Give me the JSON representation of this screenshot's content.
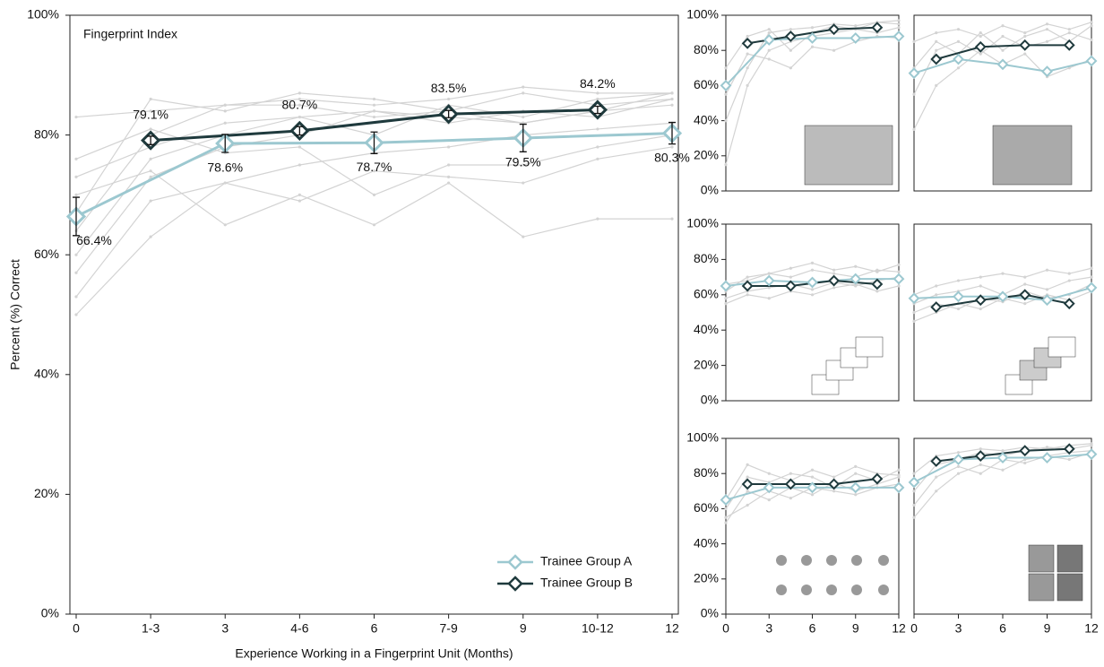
{
  "chart_data": [
    {
      "type": "line",
      "title": "Fingerprint Index",
      "xlabel": "Experience Working in a Fingerprint Unit (Months)",
      "ylabel": "Percent (%) Correct",
      "xlim": [
        0,
        12
      ],
      "ylim": [
        0,
        100
      ],
      "xticks": [
        0,
        {
          "value": 1.5,
          "label": "1-3"
        },
        3,
        {
          "value": 4.5,
          "label": "4-6"
        },
        6,
        {
          "value": 7.5,
          "label": "7-9"
        },
        9,
        {
          "value": 10.5,
          "label": "10-12"
        },
        12
      ],
      "yticks": [
        {
          "value": 0,
          "label": "0%"
        },
        {
          "value": 20,
          "label": "20%"
        },
        {
          "value": 40,
          "label": "40%"
        },
        {
          "value": 60,
          "label": "60%"
        },
        {
          "value": 80,
          "label": "80%"
        },
        {
          "value": 100,
          "label": "100%"
        }
      ],
      "legend": "lower right",
      "individual_x": [
        0,
        1.5,
        3,
        4.5,
        6,
        7.5,
        9,
        10.5,
        12
      ],
      "individual_color": "#d3d3d3",
      "individuals": [
        [
          50,
          63,
          72,
          75,
          77,
          78,
          80,
          81,
          82
        ],
        [
          53,
          69,
          72,
          69,
          74,
          73,
          72,
          76,
          78
        ],
        [
          57,
          73,
          78,
          80,
          84,
          82,
          84,
          83,
          86
        ],
        [
          60,
          76,
          80,
          83,
          80,
          85,
          83,
          86,
          87
        ],
        [
          64,
          80,
          85,
          86,
          85,
          86,
          88,
          87,
          87
        ],
        [
          67,
          86,
          84,
          87,
          86,
          84,
          87,
          85,
          86
        ],
        [
          70,
          74,
          65,
          70,
          65,
          72,
          63,
          66,
          66
        ],
        [
          73,
          78,
          82,
          83,
          84,
          83,
          82,
          84,
          85
        ],
        [
          76,
          81,
          77,
          78,
          70,
          75,
          75,
          78,
          80
        ],
        [
          83,
          84,
          85,
          85,
          83,
          84,
          82,
          84,
          87
        ]
      ],
      "series": [
        {
          "name": "Trainee Group A",
          "color": "#9cc8d0",
          "x": [
            0,
            3,
            6,
            9,
            12
          ],
          "values": [
            66.4,
            78.6,
            78.7,
            79.5,
            80.3
          ],
          "errors": [
            3.2,
            1.5,
            1.8,
            2.3,
            1.8
          ],
          "value_labels": [
            "66.4%",
            "78.6%",
            "78.7%",
            "79.5%",
            "80.3%"
          ]
        },
        {
          "name": "Trainee Group B",
          "color": "#1f3a3d",
          "x": [
            1.5,
            4.5,
            7.5,
            10.5
          ],
          "values": [
            79.1,
            80.7,
            83.5,
            84.2
          ],
          "errors": [
            0.7,
            0.7,
            0.6,
            0.6
          ],
          "value_labels": [
            "79.1%",
            "80.7%",
            "83.5%",
            "84.2%"
          ]
        }
      ]
    },
    {
      "type": "line",
      "xlim": [
        0,
        12
      ],
      "ylim": [
        0,
        100
      ],
      "yticks": [
        {
          "value": 0,
          "label": "0%"
        },
        {
          "value": 20,
          "label": "20%"
        },
        {
          "value": 40,
          "label": "40%"
        },
        {
          "value": 60,
          "label": "60%"
        },
        {
          "value": 80,
          "label": "80%"
        },
        {
          "value": 100,
          "label": "100%"
        }
      ],
      "individual_x": [
        0,
        1.5,
        3,
        4.5,
        6,
        7.5,
        9,
        10.5,
        12
      ],
      "individual_color": "#d3d3d3",
      "individuals": [
        [
          15,
          60,
          80,
          85,
          88,
          90,
          92,
          90,
          93
        ],
        [
          40,
          70,
          90,
          92,
          93,
          95,
          94,
          96,
          95
        ],
        [
          55,
          78,
          75,
          70,
          82,
          80,
          85,
          88,
          87
        ],
        [
          70,
          88,
          92,
          80,
          90,
          94,
          92,
          96,
          97
        ]
      ],
      "series": [
        {
          "name": "Trainee Group A",
          "color": "#9cc8d0",
          "x": [
            0,
            3,
            6,
            9,
            12
          ],
          "values": [
            60,
            86,
            87,
            87,
            88
          ]
        },
        {
          "name": "Trainee Group B",
          "color": "#1f3a3d",
          "x": [
            1.5,
            4.5,
            7.5,
            10.5
          ],
          "values": [
            84,
            88,
            92,
            93
          ]
        }
      ]
    },
    {
      "type": "line",
      "xlim": [
        0,
        12
      ],
      "ylim": [
        0,
        100
      ],
      "individual_x": [
        0,
        1.5,
        3,
        4.5,
        6,
        7.5,
        9,
        10.5,
        12
      ],
      "individual_color": "#d3d3d3",
      "individuals": [
        [
          35,
          60,
          70,
          80,
          72,
          78,
          65,
          70,
          75
        ],
        [
          55,
          80,
          85,
          78,
          88,
          82,
          85,
          90,
          86
        ],
        [
          70,
          85,
          78,
          90,
          80,
          88,
          92,
          85,
          94
        ],
        [
          85,
          90,
          92,
          88,
          94,
          90,
          95,
          92,
          96
        ]
      ],
      "series": [
        {
          "name": "Trainee Group A",
          "color": "#9cc8d0",
          "x": [
            0,
            3,
            6,
            9,
            12
          ],
          "values": [
            67,
            75,
            72,
            68,
            74
          ]
        },
        {
          "name": "Trainee Group B",
          "color": "#1f3a3d",
          "x": [
            1.5,
            4.5,
            7.5,
            10.5
          ],
          "values": [
            75,
            82,
            83,
            83
          ]
        }
      ]
    },
    {
      "type": "line",
      "xlim": [
        0,
        12
      ],
      "ylim": [
        0,
        100
      ],
      "yticks": [
        {
          "value": 0,
          "label": "0%"
        },
        {
          "value": 20,
          "label": "20%"
        },
        {
          "value": 40,
          "label": "40%"
        },
        {
          "value": 60,
          "label": "60%"
        },
        {
          "value": 80,
          "label": "80%"
        },
        {
          "value": 100,
          "label": "100%"
        }
      ],
      "individual_x": [
        0,
        1.5,
        3,
        4.5,
        6,
        7.5,
        9,
        10.5,
        12
      ],
      "individual_color": "#d3d3d3",
      "individuals": [
        [
          58,
          62,
          64,
          66,
          63,
          67,
          65,
          68,
          70
        ],
        [
          62,
          70,
          72,
          75,
          78,
          74,
          76,
          73,
          77
        ],
        [
          55,
          60,
          58,
          62,
          60,
          64,
          66,
          62,
          65
        ],
        [
          66,
          68,
          72,
          70,
          74,
          72,
          70,
          74,
          73
        ]
      ],
      "series": [
        {
          "name": "Trainee Group A",
          "color": "#9cc8d0",
          "x": [
            0,
            3,
            6,
            9,
            12
          ],
          "values": [
            65,
            68,
            67,
            69,
            69
          ]
        },
        {
          "name": "Trainee Group B",
          "color": "#1f3a3d",
          "x": [
            1.5,
            4.5,
            7.5,
            10.5
          ],
          "values": [
            65,
            65,
            68,
            66
          ]
        }
      ]
    },
    {
      "type": "line",
      "xlim": [
        0,
        12
      ],
      "ylim": [
        0,
        100
      ],
      "individual_x": [
        0,
        1.5,
        3,
        4.5,
        6,
        7.5,
        9,
        10.5,
        12
      ],
      "individual_color": "#d3d3d3",
      "individuals": [
        [
          45,
          50,
          55,
          52,
          58,
          55,
          60,
          57,
          62
        ],
        [
          55,
          60,
          62,
          65,
          60,
          66,
          63,
          68,
          70
        ],
        [
          60,
          65,
          68,
          70,
          72,
          70,
          74,
          72,
          75
        ],
        [
          50,
          55,
          52,
          58,
          56,
          62,
          58,
          60,
          66
        ]
      ],
      "series": [
        {
          "name": "Trainee Group A",
          "color": "#9cc8d0",
          "x": [
            0,
            3,
            6,
            9,
            12
          ],
          "values": [
            58,
            59,
            59,
            57,
            64
          ]
        },
        {
          "name": "Trainee Group B",
          "color": "#1f3a3d",
          "x": [
            1.5,
            4.5,
            7.5,
            10.5
          ],
          "values": [
            53,
            57,
            60,
            55
          ]
        }
      ]
    },
    {
      "type": "line",
      "xlim": [
        0,
        12
      ],
      "ylim": [
        0,
        100
      ],
      "xticks": [
        0,
        3,
        6,
        9,
        12
      ],
      "yticks": [
        {
          "value": 0,
          "label": "0%"
        },
        {
          "value": 20,
          "label": "20%"
        },
        {
          "value": 40,
          "label": "40%"
        },
        {
          "value": 60,
          "label": "60%"
        },
        {
          "value": 80,
          "label": "80%"
        },
        {
          "value": 100,
          "label": "100%"
        }
      ],
      "individual_x": [
        0,
        1.5,
        3,
        4.5,
        6,
        7.5,
        9,
        10.5,
        12
      ],
      "individual_color": "#d3d3d3",
      "individuals": [
        [
          52,
          70,
          65,
          72,
          68,
          75,
          70,
          74,
          78
        ],
        [
          60,
          78,
          75,
          80,
          78,
          72,
          80,
          76,
          82
        ],
        [
          55,
          62,
          70,
          66,
          72,
          70,
          68,
          72,
          74
        ],
        [
          65,
          85,
          80,
          76,
          82,
          78,
          84,
          80,
          79
        ]
      ],
      "series": [
        {
          "name": "Trainee Group A",
          "color": "#9cc8d0",
          "x": [
            0,
            3,
            6,
            9,
            12
          ],
          "values": [
            65,
            72,
            72,
            72,
            72
          ]
        },
        {
          "name": "Trainee Group B",
          "color": "#1f3a3d",
          "x": [
            1.5,
            4.5,
            7.5,
            10.5
          ],
          "values": [
            74,
            74,
            74,
            77
          ]
        }
      ]
    },
    {
      "type": "line",
      "xlim": [
        0,
        12
      ],
      "ylim": [
        0,
        100
      ],
      "xticks": [
        0,
        3,
        6,
        9,
        12
      ],
      "individual_x": [
        0,
        1.5,
        3,
        4.5,
        6,
        7.5,
        9,
        10.5,
        12
      ],
      "individual_color": "#d3d3d3",
      "individuals": [
        [
          55,
          70,
          80,
          85,
          82,
          88,
          90,
          92,
          93
        ],
        [
          70,
          85,
          88,
          92,
          90,
          93,
          95,
          94,
          96
        ],
        [
          62,
          78,
          84,
          80,
          88,
          86,
          90,
          88,
          92
        ],
        [
          80,
          90,
          92,
          94,
          93,
          95,
          94,
          96,
          97
        ]
      ],
      "series": [
        {
          "name": "Trainee Group A",
          "color": "#9cc8d0",
          "x": [
            0,
            3,
            6,
            9,
            12
          ],
          "values": [
            75,
            88,
            89,
            89,
            91
          ]
        },
        {
          "name": "Trainee Group B",
          "color": "#1f3a3d",
          "x": [
            1.5,
            4.5,
            7.5,
            10.5
          ],
          "values": [
            87,
            90,
            93,
            94
          ]
        }
      ]
    }
  ]
}
